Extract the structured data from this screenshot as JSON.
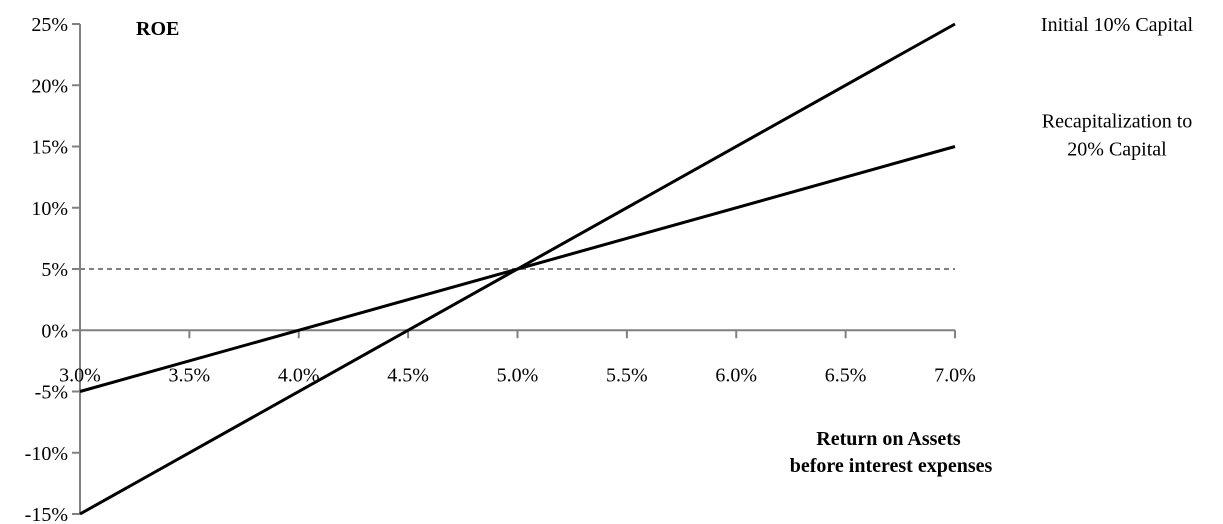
{
  "chart_data": {
    "type": "line",
    "ylabel": "ROE",
    "xlabel_lines": [
      "Return on Assets",
      "before interest expenses"
    ],
    "x_ticks": [
      "3.0%",
      "3.5%",
      "4.0%",
      "4.5%",
      "5.0%",
      "5.5%",
      "6.0%",
      "6.5%",
      "7.0%"
    ],
    "y_ticks": [
      "25%",
      "20%",
      "15%",
      "10%",
      "5%",
      "0%",
      "-5%",
      "-10%",
      "-15%"
    ],
    "xlim": [
      3.0,
      7.0
    ],
    "ylim": [
      -15,
      25
    ],
    "x_tick_values": [
      3.0,
      3.5,
      4.0,
      4.5,
      5.0,
      5.5,
      6.0,
      6.5,
      7.0
    ],
    "y_tick_values": [
      25,
      20,
      15,
      10,
      5,
      0,
      -5,
      -10,
      -15
    ],
    "grid": false,
    "reference_line": {
      "y": 5,
      "style": "dashed"
    },
    "series": [
      {
        "name": "Initial 10% Capital",
        "label_lines": [
          "Initial 10% Capital"
        ],
        "x": [
          3.0,
          7.0
        ],
        "y": [
          -15,
          25
        ]
      },
      {
        "name": "Recapitalization to 20% Capital",
        "label_lines": [
          "Recapitalization to",
          "20% Capital"
        ],
        "x": [
          3.0,
          7.0
        ],
        "y": [
          -5,
          15
        ]
      }
    ]
  }
}
